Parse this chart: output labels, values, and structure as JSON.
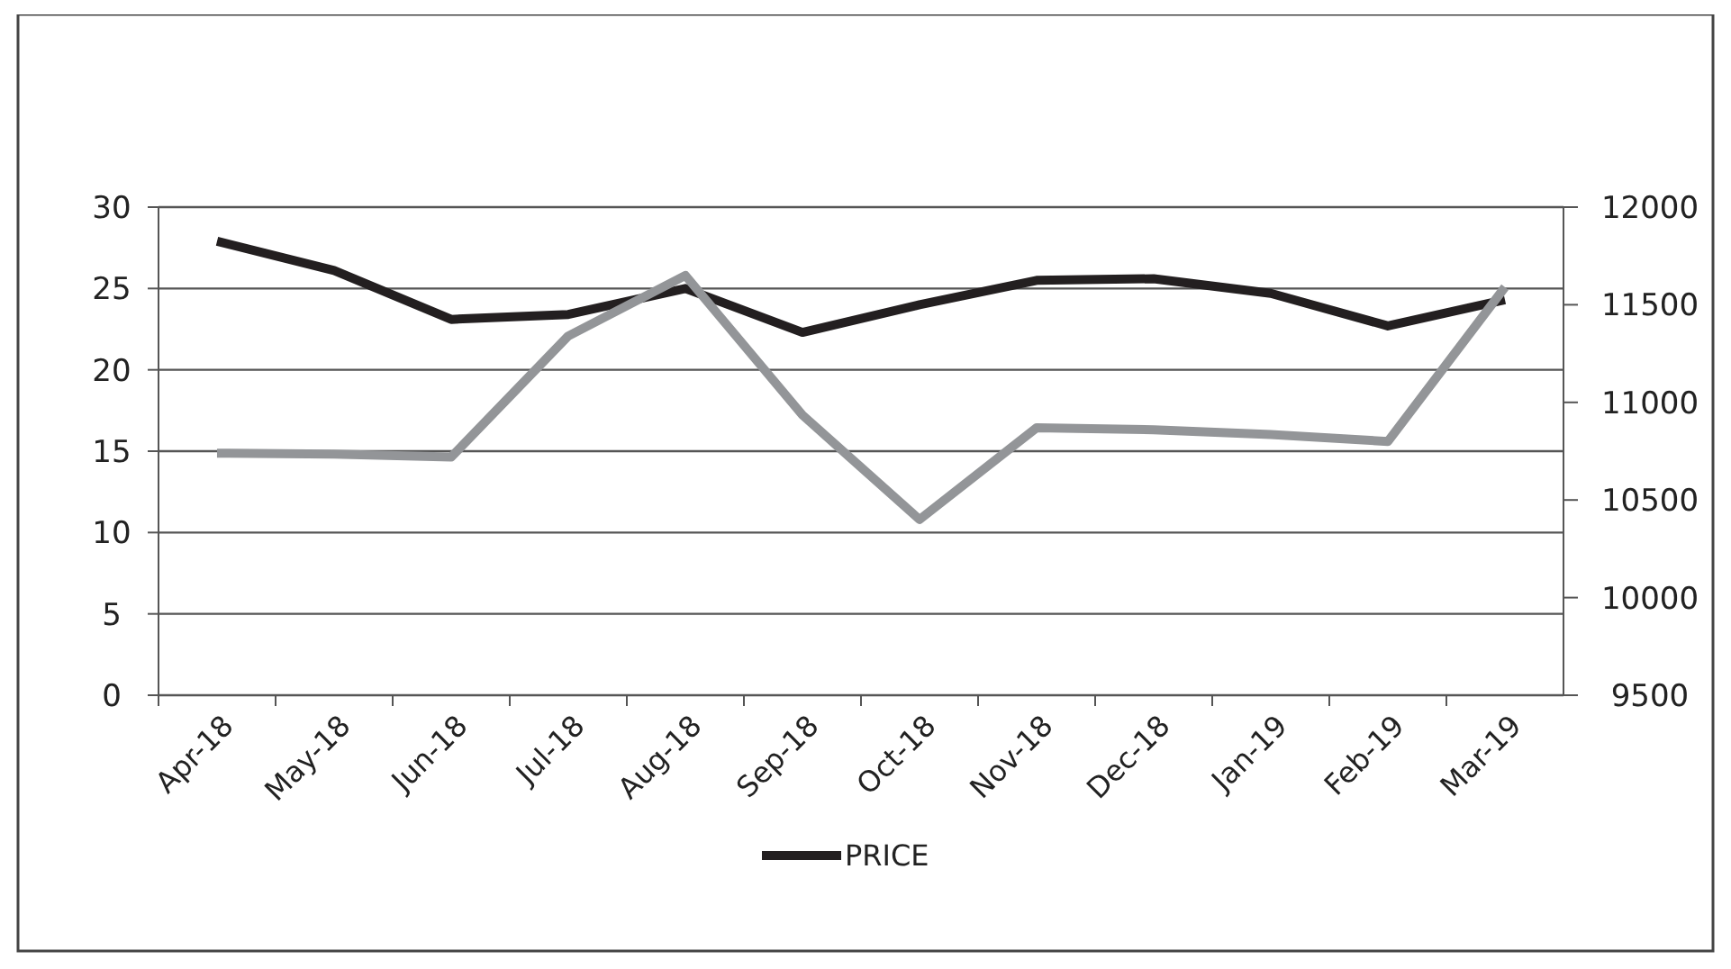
{
  "chart_data": {
    "type": "line",
    "categories": [
      "Apr-18",
      "May-18",
      "Jun-18",
      "Jul-18",
      "Aug-18",
      "Sep-18",
      "Oct-18",
      "Nov-18",
      "Dec-18",
      "Jan-19",
      "Feb-19",
      "Mar-19"
    ],
    "series": [
      {
        "name": "PRICE",
        "color": "#231f20",
        "values": [
          27.9,
          26.1,
          23.1,
          23.4,
          25.0,
          22.3,
          24.0,
          25.5,
          25.6,
          24.7,
          22.7,
          24.3
        ]
      },
      {
        "color": "#939598",
        "axis": "y2",
        "values": [
          10740,
          10735,
          10720,
          11340,
          11650,
          10935,
          10400,
          10870,
          10860,
          10835,
          10800,
          11590
        ]
      }
    ],
    "ylim": [
      0,
      30
    ],
    "yticks": [
      0,
      5,
      10,
      15,
      20,
      25,
      30
    ],
    "y2lim": [
      9500,
      12000
    ],
    "y2ticks": [
      9500,
      10000,
      10500,
      11000,
      11500,
      12000
    ],
    "grid": "y",
    "legend": "bottom",
    "marker": "none",
    "line_style": "solid"
  }
}
